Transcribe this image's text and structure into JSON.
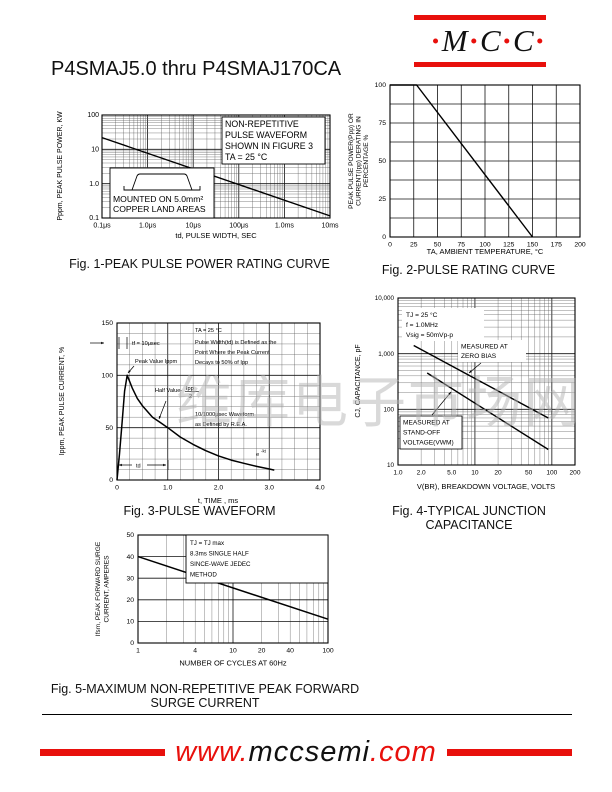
{
  "header": {
    "title": "P4SMAJ5.0 thru P4SMAJ170CA"
  },
  "logo": {
    "dot": "·",
    "l1": "M",
    "l2": "C",
    "l3": "C"
  },
  "watermark": "维库电子市场网",
  "footer": {
    "www": "www.",
    "domain": "mccsemi",
    "com": ".com"
  },
  "colors": {
    "red": "#e8100c",
    "black": "#000000"
  },
  "chart_data": [
    {
      "id": "fig1",
      "type": "line",
      "xscale": "log",
      "yscale": "log",
      "caption": "Fig. 1-PEAK PULSE POWER RATING CURVE",
      "xlabel": "td, PULSE WIDTH, SEC",
      "ylabel": "Pppm, PEAK PULSE POWER, KW",
      "xlim": [
        0.1,
        10000
      ],
      "ylim": [
        0.1,
        100
      ],
      "x_unit": "μs",
      "xticks": [
        {
          "v": 0.1,
          "label": "0.1μs"
        },
        {
          "v": 1,
          "label": "1.0μs"
        },
        {
          "v": 10,
          "label": "10μs"
        },
        {
          "v": 100,
          "label": "100μs"
        },
        {
          "v": 1000,
          "label": "1.0ms"
        },
        {
          "v": 10000,
          "label": "10ms"
        }
      ],
      "yticks": [
        {
          "v": 100,
          "label": "100"
        },
        {
          "v": 10,
          "label": "10"
        },
        {
          "v": 1,
          "label": "1.0"
        },
        {
          "v": 0.1,
          "label": "0.1"
        }
      ],
      "series": [
        {
          "name": "peak-pulse-power-kw",
          "points": [
            [
              0.1,
              22
            ],
            [
              10000,
              0.115
            ]
          ]
        }
      ],
      "note_box": [
        "NON-REPETITIVE",
        "PULSE WAVEFORM",
        "SHOWN IN FIGURE 3",
        "TA = 25 °C"
      ],
      "inset": [
        "MOUNTED ON 5.0mm²",
        "COPPER LAND AREAS"
      ]
    },
    {
      "id": "fig2",
      "type": "line",
      "xscale": "linear",
      "yscale": "linear",
      "caption": "Fig. 2-PULSE RATING CURVE",
      "xlabel": "TA, AMBIENT TEMPERATURE, °C",
      "ylabel_lines": [
        "PEAK PULSE POWER(Ppp) OR",
        "CURRENT(Ipp) DERATING IN",
        "PERCENTAGE %"
      ],
      "xlim": [
        0,
        200
      ],
      "ylim": [
        0,
        100
      ],
      "xticks": [
        0,
        25,
        50,
        75,
        100,
        125,
        150,
        175,
        200
      ],
      "yticks": [
        0,
        25,
        50,
        75,
        100
      ],
      "x_grid_step": 25,
      "y_grid_step": 12.5,
      "series": [
        {
          "name": "derating-percent",
          "points": [
            [
              0,
              100
            ],
            [
              28,
              100
            ],
            [
              150,
              0
            ]
          ]
        }
      ]
    },
    {
      "id": "fig3",
      "type": "line",
      "xscale": "linear",
      "yscale": "linear",
      "caption": "Fig. 3-PULSE WAVEFORM",
      "xlabel": "t, TIME , ms",
      "ylabel": "Ippm, PEAK PULSE CURRENT, %",
      "xlim": [
        0,
        4
      ],
      "ylim": [
        0,
        150
      ],
      "xticks": [
        {
          "v": 0,
          "label": "0"
        },
        {
          "v": 1,
          "label": "1.0"
        },
        {
          "v": 2,
          "label": "2.0"
        },
        {
          "v": 3,
          "label": "3.0"
        },
        {
          "v": 4,
          "label": "4.0"
        }
      ],
      "yticks": [
        {
          "v": 0,
          "label": "0"
        },
        {
          "v": 50,
          "label": "50"
        },
        {
          "v": 100,
          "label": "100"
        },
        {
          "v": 150,
          "label": "150"
        }
      ],
      "x_grid_step": 0.25,
      "y_grid_step": 10,
      "series": [
        {
          "name": "pulse-waveform",
          "points": [
            [
              0,
              0
            ],
            [
              0.05,
              25
            ],
            [
              0.1,
              55
            ],
            [
              0.15,
              85
            ],
            [
              0.2,
              100
            ],
            [
              0.3,
              88
            ],
            [
              0.4,
              78
            ],
            [
              0.5,
              71
            ],
            [
              0.7,
              60
            ],
            [
              0.85,
              55
            ],
            [
              1,
              50
            ],
            [
              1.25,
              41
            ],
            [
              1.5,
              34
            ],
            [
              1.75,
              28
            ],
            [
              2,
              23
            ],
            [
              2.25,
              19
            ],
            [
              2.5,
              16
            ],
            [
              2.75,
              13
            ],
            [
              3,
              10.5
            ],
            [
              3.1,
              9.5
            ]
          ]
        }
      ],
      "annotations": {
        "ta": "TA = 25 °C",
        "pw1": "Pulse Width(td) is Defined as the",
        "pw2": "Point Where the Peak Current",
        "pw3": "Decays to 50% of Ipp",
        "tf": "tf = 10μsec",
        "peak": "Peak Value Ippm",
        "half": "Half Value-",
        "half_num": "Ipp",
        "half_den": "2",
        "wave1": "10/1000μsec Waveform",
        "wave2": "as Defined by R.E.A.",
        "td": "td",
        "ekt_base": "e",
        "ekt_sup": "-kt"
      }
    },
    {
      "id": "fig4",
      "type": "line",
      "xscale": "log",
      "yscale": "log",
      "caption": "Fig. 4-TYPICAL JUNCTION CAPACITANCE",
      "xlabel": "V(BR), BREAKDOWN VOLTAGE, VOLTS",
      "ylabel": "CJ, CAPACITANCE, pF",
      "xlim": [
        1,
        200
      ],
      "ylim": [
        10,
        10000
      ],
      "xticks": [
        {
          "v": 1,
          "label": "1.0"
        },
        {
          "v": 2,
          "label": "2.0"
        },
        {
          "v": 5,
          "label": "5.0"
        },
        {
          "v": 10,
          "label": "10"
        },
        {
          "v": 20,
          "label": "20"
        },
        {
          "v": 50,
          "label": "50"
        },
        {
          "v": 100,
          "label": "100"
        },
        {
          "v": 200,
          "label": "200"
        }
      ],
      "yticks": [
        {
          "v": 10,
          "label": "10"
        },
        {
          "v": 100,
          "label": "100"
        },
        {
          "v": 1000,
          "label": "1,000"
        },
        {
          "v": 10000,
          "label": "10,000"
        }
      ],
      "series": [
        {
          "name": "zero-bias-capacitance",
          "points": [
            [
              1.6,
              1400
            ],
            [
              90,
              70
            ]
          ]
        },
        {
          "name": "stand-off-voltage-capacitance",
          "points": [
            [
              2.4,
              450
            ],
            [
              90,
              19
            ]
          ]
        }
      ],
      "conditions": [
        "TJ = 25 °C",
        "f = 1.0MHz",
        "Vsig = 50mVp-p"
      ],
      "label_zero_bias": [
        "MEASURED AT",
        "ZERO BIAS"
      ],
      "label_stand_off": [
        "MEASURED AT",
        "STAND-OFF",
        "VOLTAGE(VWM)"
      ]
    },
    {
      "id": "fig5",
      "type": "line",
      "xscale": "log",
      "yscale": "linear",
      "caption_line1": "Fig. 5-MAXIMUM NON-REPETITIVE PEAK FORWARD",
      "caption_line2": "SURGE CURRENT",
      "xlabel": "NUMBER OF CYCLES AT 60Hz",
      "ylabel_lines": [
        "Ifsm, PEAK FORWARD SURGE",
        "CURRENT, AMPERES"
      ],
      "xlim": [
        1,
        100
      ],
      "ylim": [
        0,
        50
      ],
      "xticks": [
        {
          "v": 1,
          "label": "1"
        },
        {
          "v": 4,
          "label": "4"
        },
        {
          "v": 10,
          "label": "10"
        },
        {
          "v": 20,
          "label": "20"
        },
        {
          "v": 40,
          "label": "40"
        },
        {
          "v": 100,
          "label": "100"
        }
      ],
      "yticks": [
        {
          "v": 0,
          "label": "0"
        },
        {
          "v": 10,
          "label": "10"
        },
        {
          "v": 20,
          "label": "20"
        },
        {
          "v": 30,
          "label": "30"
        },
        {
          "v": 40,
          "label": "40"
        },
        {
          "v": 50,
          "label": "50"
        }
      ],
      "y_grid_step": 10,
      "series": [
        {
          "name": "peak-forward-surge-current",
          "points": [
            [
              1,
              40
            ],
            [
              100,
              11
            ]
          ]
        }
      ],
      "note_box": [
        "TJ = TJ max",
        "8.3ms SINGLE HALF",
        "SINCE-WAVE JEDEC",
        "METHOD"
      ]
    }
  ]
}
